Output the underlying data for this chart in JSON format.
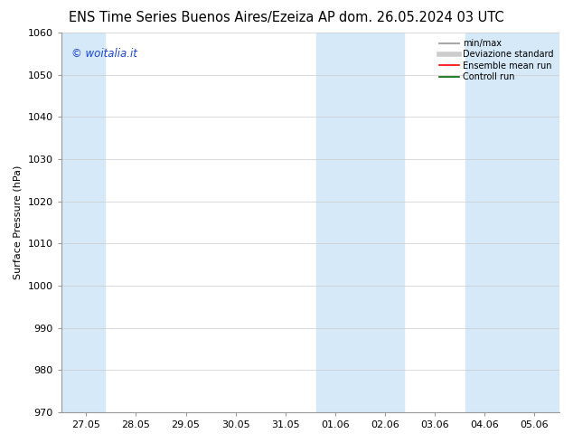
{
  "title_left": "ENS Time Series Buenos Aires/Ezeiza AP",
  "title_right": "dom. 26.05.2024 03 UTC",
  "ylabel": "Surface Pressure (hPa)",
  "ylim": [
    970,
    1060
  ],
  "yticks": [
    970,
    980,
    990,
    1000,
    1010,
    1020,
    1030,
    1040,
    1050,
    1060
  ],
  "xtick_labels": [
    "27.05",
    "28.05",
    "29.05",
    "30.05",
    "31.05",
    "01.06",
    "02.06",
    "03.06",
    "04.06",
    "05.06"
  ],
  "n_ticks": 10,
  "band_color": "#d6e9f8",
  "watermark": "© woitalia.it",
  "watermark_color": "#1a44cc",
  "legend_items": [
    {
      "label": "min/max",
      "color": "#aaaaaa",
      "lw": 1.5,
      "style": "solid"
    },
    {
      "label": "Deviazione standard",
      "color": "#cccccc",
      "lw": 4,
      "style": "solid"
    },
    {
      "label": "Ensemble mean run",
      "color": "#ff0000",
      "lw": 1.2,
      "style": "solid"
    },
    {
      "label": "Controll run",
      "color": "#006600",
      "lw": 1.2,
      "style": "solid"
    }
  ],
  "bg_color": "#ffffff",
  "grid_color": "#cccccc",
  "title_fontsize": 10.5,
  "axis_fontsize": 8,
  "tick_fontsize": 8
}
